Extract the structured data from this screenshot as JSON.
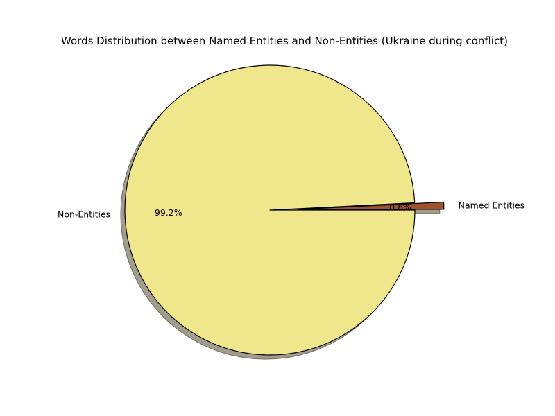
{
  "chart_data": {
    "type": "pie",
    "title": "Words Distribution between Named Entities and Non-Entities (Ukraine during conflict)",
    "slices": [
      {
        "label": "Named Entities",
        "value": 0.8,
        "pct_label": "0.8%",
        "color": "#a0522d",
        "exploded": true
      },
      {
        "label": "Non-Entities",
        "value": 99.2,
        "pct_label": "99.2%",
        "color": "#f0e68c",
        "exploded": false
      }
    ],
    "start_angle_deg": 0,
    "shadow": true,
    "edge_color": "#000000",
    "shadow_color": "#a19d8c"
  }
}
